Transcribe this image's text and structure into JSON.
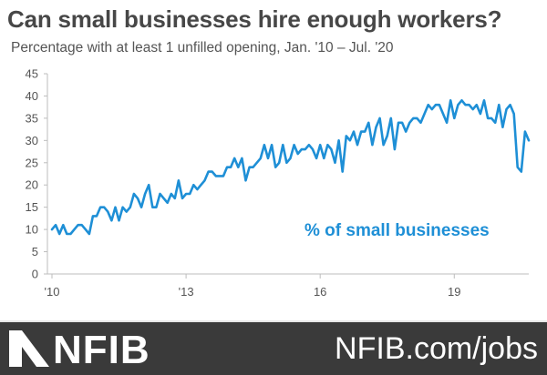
{
  "footer": {
    "logo_text": "NFIB",
    "site": "NFIB.com/jobs",
    "logo_icon": "nfib-mark-icon"
  },
  "colors": {
    "line": "#1e8fd6",
    "axis": "#bdbdbd",
    "footer_bg": "#3a3a3a",
    "title": "#474747"
  },
  "chart_data": {
    "type": "line",
    "title": "Can small businesses hire enough workers?",
    "subtitle": "Percentage with at least 1 unfilled opening, Jan. '10 – Jul. '20",
    "xlabel": "",
    "ylabel": "",
    "ylim": [
      0,
      45
    ],
    "yticks": [
      "0",
      "5",
      "10",
      "15",
      "20",
      "25",
      "30",
      "35",
      "40",
      "45"
    ],
    "xticks": [
      {
        "label": "'10",
        "t": 0
      },
      {
        "label": "'13",
        "t": 36
      },
      {
        "label": "16",
        "t": 72
      },
      {
        "label": "19",
        "t": 108
      }
    ],
    "grid": false,
    "annotation": "% of small businesses",
    "series": [
      {
        "start": "Jan. '10",
        "frequency": "monthly",
        "values": [
          10,
          11,
          9,
          11,
          9,
          9,
          10,
          11,
          11,
          10,
          9,
          13,
          13,
          15,
          15,
          14,
          12,
          15,
          12,
          15,
          14,
          15,
          18,
          17,
          15,
          18,
          20,
          15,
          15,
          18,
          17,
          16,
          18,
          17,
          21,
          17,
          18,
          18,
          20,
          19,
          20,
          21,
          23,
          23,
          22,
          22,
          22,
          24,
          24,
          26,
          24,
          26,
          21,
          24,
          24,
          25,
          26,
          29,
          26,
          29,
          24,
          25,
          29,
          25,
          26,
          29,
          27,
          28,
          28,
          29,
          28,
          26,
          29,
          26,
          29,
          28,
          25,
          30,
          23,
          31,
          30,
          32,
          29,
          32,
          32,
          34,
          29,
          33,
          35,
          29,
          31,
          35,
          28,
          34,
          34,
          32,
          34,
          35,
          35,
          34,
          36,
          38,
          37,
          38,
          38,
          36,
          34,
          39,
          35,
          38,
          39,
          38,
          38,
          37,
          38,
          36,
          39,
          35,
          35,
          34,
          38,
          33,
          37,
          38,
          36,
          24,
          23,
          32,
          30
        ]
      }
    ]
  }
}
